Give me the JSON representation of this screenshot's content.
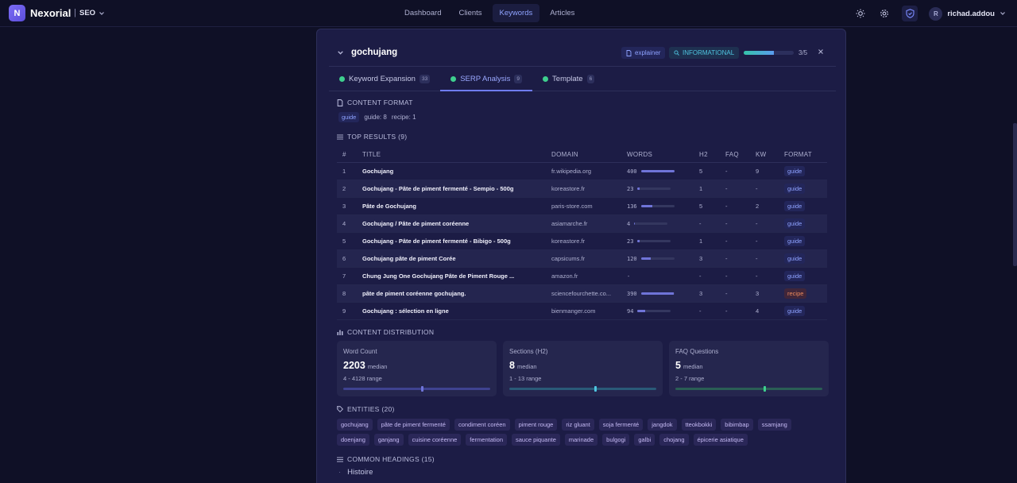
{
  "app": {
    "logo_letter": "N",
    "brand": "Nexorial",
    "separator": "|",
    "section": "SEO"
  },
  "nav": {
    "links": [
      "Dashboard",
      "Clients",
      "Keywords",
      "Articles"
    ],
    "active": "Keywords"
  },
  "user": {
    "initial": "R",
    "name": "richad.addou"
  },
  "panel": {
    "keyword": "gochujang",
    "explainer_label": "explainer",
    "intent_label": "INFORMATIONAL",
    "progress_value": 0.6,
    "progress_text": "3/5",
    "tabs": [
      {
        "label": "Keyword Expansion",
        "count": "33",
        "active": false
      },
      {
        "label": "SERP Analysis",
        "count": "9",
        "active": true
      },
      {
        "label": "Template",
        "count": "6",
        "active": false
      }
    ]
  },
  "content_format": {
    "title": "CONTENT FORMAT",
    "chip": "guide",
    "guide_count": "guide: 8",
    "recipe_count": "recipe: 1"
  },
  "top_results": {
    "title": "TOP RESULTS (9)",
    "columns": [
      "#",
      "TITLE",
      "DOMAIN",
      "WORDS",
      "H2",
      "FAQ",
      "KW",
      "FORMAT"
    ],
    "rows": [
      {
        "n": "1",
        "title": "Gochujang",
        "domain": "fr.wikipedia.org",
        "words": "400",
        "w": 400,
        "h2": "5",
        "faq": "-",
        "kw": "9",
        "format": "guide"
      },
      {
        "n": "2",
        "title": "Gochujang - Pâte de piment fermenté - Sempio - 500g",
        "domain": "koreastore.fr",
        "words": "23",
        "w": 23,
        "h2": "1",
        "faq": "-",
        "kw": "-",
        "format": "guide"
      },
      {
        "n": "3",
        "title": "Pâte de Gochujang",
        "domain": "paris-store.com",
        "words": "136",
        "w": 136,
        "h2": "5",
        "faq": "-",
        "kw": "2",
        "format": "guide"
      },
      {
        "n": "4",
        "title": "Gochujang / Pâte de piment coréenne",
        "domain": "asiamarche.fr",
        "words": "4",
        "w": 4,
        "h2": "-",
        "faq": "-",
        "kw": "-",
        "format": "guide"
      },
      {
        "n": "5",
        "title": "Gochujang - Pâte de piment fermenté - Bibigo - 500g",
        "domain": "koreastore.fr",
        "words": "23",
        "w": 23,
        "h2": "1",
        "faq": "-",
        "kw": "-",
        "format": "guide"
      },
      {
        "n": "6",
        "title": "Gochujang pâte de piment Corée",
        "domain": "capsicums.fr",
        "words": "120",
        "w": 120,
        "h2": "3",
        "faq": "-",
        "kw": "-",
        "format": "guide"
      },
      {
        "n": "7",
        "title": "Chung Jung One Gochujang Pâte de Piment Rouge ...",
        "domain": "amazon.fr",
        "words": "-",
        "w": 0,
        "h2": "-",
        "faq": "-",
        "kw": "-",
        "format": "guide"
      },
      {
        "n": "8",
        "title": "pâte de piment coréenne gochujang.",
        "domain": "sciencefourchette.co...",
        "words": "390",
        "w": 390,
        "h2": "3",
        "faq": "-",
        "kw": "3",
        "format": "recipe"
      },
      {
        "n": "9",
        "title": "Gochujang : sélection en ligne",
        "domain": "bienmanger.com",
        "words": "94",
        "w": 94,
        "h2": "-",
        "faq": "-",
        "kw": "4",
        "format": "guide"
      }
    ]
  },
  "distribution": {
    "title": "CONTENT DISTRIBUTION",
    "cards": [
      {
        "label": "Word Count",
        "value": "2203",
        "unit": "median",
        "range": "4 - 4128 range",
        "marker": 0.53,
        "color": "#6f74d8",
        "track": "#3f4290"
      },
      {
        "label": "Sections (H2)",
        "value": "8",
        "unit": "median",
        "range": "1 - 13 range",
        "marker": 0.58,
        "color": "#4fc5e0",
        "track": "#2a5a78"
      },
      {
        "label": "FAQ Questions",
        "value": "5",
        "unit": "median",
        "range": "2 - 7 range",
        "marker": 0.6,
        "color": "#3ecf8e",
        "track": "#2a5e55"
      }
    ]
  },
  "entities": {
    "title": "ENTITIES (20)",
    "items": [
      "gochujang",
      "pâte de piment fermenté",
      "condiment coréen",
      "piment rouge",
      "riz gluant",
      "soja fermenté",
      "jangdok",
      "tteokbokki",
      "bibimbap",
      "ssamjang",
      "doenjang",
      "ganjang",
      "cuisine coréenne",
      "fermentation",
      "sauce piquante",
      "marinade",
      "bulgogi",
      "galbi",
      "chojang",
      "épicerie asiatique"
    ]
  },
  "headings": {
    "title": "COMMON HEADINGS (15)",
    "first": "Histoire"
  },
  "colors": {
    "accent": "#6f7cf5",
    "green": "#3ecf8e",
    "cyan": "#4fc5e0",
    "recipe": "#ec8a5c"
  }
}
